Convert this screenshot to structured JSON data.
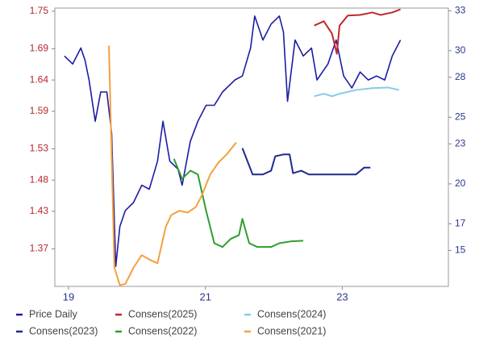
{
  "chart_data": {
    "type": "line",
    "xlim": [
      18.8,
      24.55
    ],
    "xticks": [
      19,
      21,
      23
    ],
    "ylim": [
      1.31,
      1.755
    ],
    "yticks": [
      1.37,
      1.43,
      1.48,
      1.53,
      1.59,
      1.64,
      1.69,
      1.75
    ],
    "y2lim": [
      12.3,
      33.2
    ],
    "y2ticks": [
      15,
      17,
      20,
      23,
      25,
      28,
      30,
      33
    ],
    "series": [
      {
        "name": "Price Daily",
        "color": "#1c1ca6",
        "axis": "y2",
        "x": [
          18.94,
          19.06,
          19.18,
          19.24,
          19.3,
          19.39,
          19.47,
          19.56,
          19.63,
          19.69,
          19.75,
          19.83,
          19.95,
          20.07,
          20.18,
          20.3,
          20.38,
          20.48,
          20.6,
          20.66,
          20.78,
          20.89,
          21.01,
          21.13,
          21.25,
          21.43,
          21.54,
          21.66,
          21.72,
          21.84,
          21.96,
          22.08,
          22.14,
          22.2,
          22.31,
          22.43,
          22.55,
          22.63,
          22.79,
          22.91,
          23.02,
          23.14,
          23.26,
          23.38,
          23.5,
          23.62,
          23.73,
          23.85
        ],
        "values": [
          29.6,
          29.0,
          30.2,
          29.3,
          27.8,
          24.7,
          26.9,
          26.9,
          23.8,
          13.8,
          16.8,
          18.0,
          18.6,
          19.9,
          19.6,
          21.7,
          24.7,
          21.7,
          21.1,
          19.9,
          23.2,
          24.7,
          25.9,
          25.9,
          26.9,
          27.8,
          28.1,
          30.2,
          32.6,
          30.8,
          32.0,
          32.6,
          31.4,
          26.2,
          30.8,
          29.6,
          30.2,
          27.8,
          29.0,
          30.8,
          28.1,
          27.2,
          28.4,
          27.8,
          28.1,
          27.8,
          29.6,
          30.8
        ]
      },
      {
        "name": "Consens(2025)",
        "color": "#c0282d",
        "x": [
          22.59,
          22.73,
          22.85,
          22.92,
          22.96,
          23.08,
          23.26,
          23.44,
          23.56,
          23.73,
          23.85
        ],
        "values": [
          1.727,
          1.734,
          1.714,
          1.682,
          1.727,
          1.743,
          1.744,
          1.748,
          1.744,
          1.748,
          1.753
        ]
      },
      {
        "name": "Consens(2024)",
        "color": "#86cbe6",
        "x": [
          22.59,
          22.73,
          22.85,
          22.96,
          23.2,
          23.44,
          23.67,
          23.83
        ],
        "values": [
          1.614,
          1.618,
          1.614,
          1.618,
          1.624,
          1.627,
          1.628,
          1.624
        ]
      },
      {
        "name": "Consens(2023)",
        "color": "#1e2a8c",
        "x": [
          21.54,
          21.69,
          21.84,
          21.96,
          22.02,
          22.14,
          22.23,
          22.28,
          22.4,
          22.51,
          22.73,
          22.96,
          23.2,
          23.32,
          23.41
        ],
        "values": [
          1.531,
          1.489,
          1.489,
          1.495,
          1.518,
          1.521,
          1.521,
          1.491,
          1.495,
          1.489,
          1.489,
          1.489,
          1.489,
          1.5,
          1.5
        ]
      },
      {
        "name": "Consens(2022)",
        "color": "#2e9e2e",
        "x": [
          20.54,
          20.66,
          20.78,
          20.89,
          21.01,
          21.13,
          21.25,
          21.37,
          21.49,
          21.54,
          21.64,
          21.76,
          21.96,
          22.08,
          22.25,
          22.43
        ],
        "values": [
          1.514,
          1.482,
          1.495,
          1.489,
          1.431,
          1.379,
          1.373,
          1.386,
          1.392,
          1.418,
          1.379,
          1.373,
          1.373,
          1.379,
          1.382,
          1.383
        ]
      },
      {
        "name": "Consens(2021)",
        "color": "#f4a040",
        "x": [
          19.59,
          19.67,
          19.75,
          19.83,
          19.95,
          20.07,
          20.18,
          20.3,
          20.42,
          20.5,
          20.62,
          20.74,
          20.86,
          20.95,
          21.07,
          21.19,
          21.31,
          21.45
        ],
        "values": [
          1.695,
          1.34,
          1.312,
          1.314,
          1.34,
          1.36,
          1.353,
          1.347,
          1.405,
          1.424,
          1.431,
          1.428,
          1.437,
          1.456,
          1.489,
          1.508,
          1.521,
          1.54
        ]
      }
    ]
  }
}
